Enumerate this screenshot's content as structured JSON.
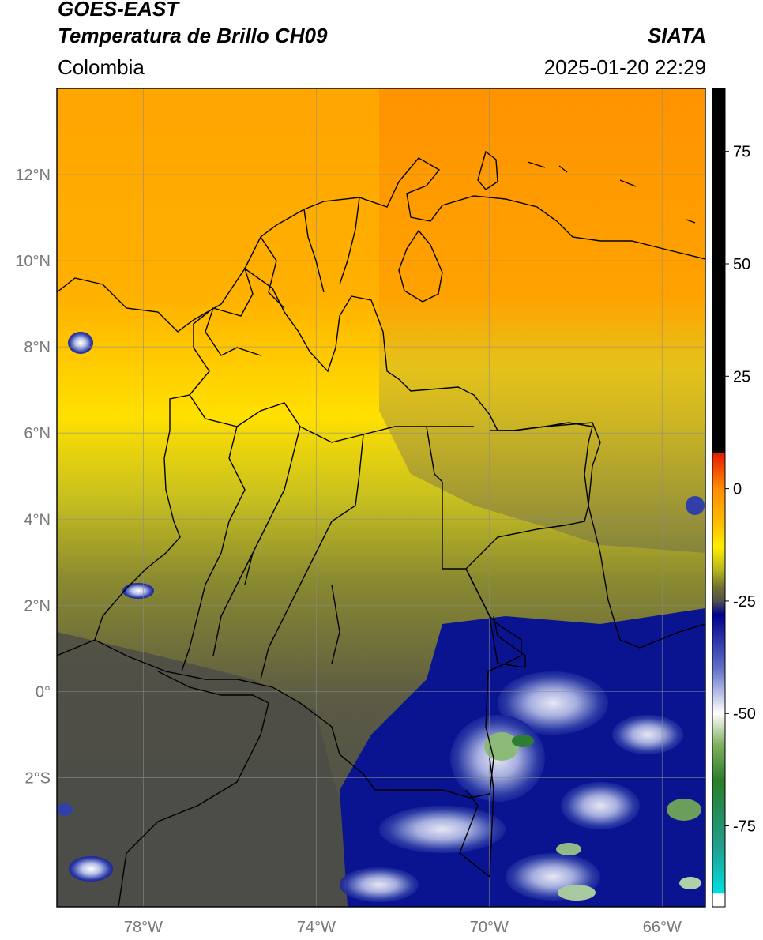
{
  "header": {
    "satellite": "GOES-EAST",
    "product": "Temperatura de Brillo CH09",
    "source": "SIATA",
    "region": "Colombia",
    "datetime": "2025-01-20 22:29"
  },
  "map": {
    "lon_range": [
      -80,
      -65
    ],
    "lat_range": [
      -5,
      14
    ],
    "lat_ticks": [
      {
        "value": 12,
        "label": "12°N"
      },
      {
        "value": 10,
        "label": "10°N"
      },
      {
        "value": 8,
        "label": "8°N"
      },
      {
        "value": 6,
        "label": "6°N"
      },
      {
        "value": 4,
        "label": "4°N"
      },
      {
        "value": 2,
        "label": "2°N"
      },
      {
        "value": 0,
        "label": "0°"
      },
      {
        "value": -2,
        "label": "2°S"
      }
    ],
    "lon_ticks": [
      {
        "value": -78,
        "label": "78°W"
      },
      {
        "value": -74,
        "label": "74°W"
      },
      {
        "value": -70,
        "label": "70°W"
      },
      {
        "value": -66,
        "label": "66°W"
      }
    ],
    "grid": true
  },
  "colorbar": {
    "range": [
      -93,
      89
    ],
    "ticks": [
      {
        "value": 75,
        "label": "75"
      },
      {
        "value": 50,
        "label": "50"
      },
      {
        "value": 25,
        "label": "25"
      },
      {
        "value": 0,
        "label": "0"
      },
      {
        "value": -25,
        "label": "-25"
      },
      {
        "value": -50,
        "label": "-50"
      },
      {
        "value": -75,
        "label": "-75"
      }
    ],
    "stops": [
      {
        "value": 89,
        "color": "#000000"
      },
      {
        "value": 8,
        "color": "#000000"
      },
      {
        "value": 7.9,
        "color": "#e61a00"
      },
      {
        "value": 0,
        "color": "#ff8c00"
      },
      {
        "value": -8,
        "color": "#ffc000"
      },
      {
        "value": -13,
        "color": "#ffee00"
      },
      {
        "value": -18,
        "color": "#b8b820"
      },
      {
        "value": -22,
        "color": "#707030"
      },
      {
        "value": -25,
        "color": "#505050"
      },
      {
        "value": -28,
        "color": "#00008c"
      },
      {
        "value": -40,
        "color": "#6070c8"
      },
      {
        "value": -50,
        "color": "#ffffff"
      },
      {
        "value": -57,
        "color": "#80b060"
      },
      {
        "value": -65,
        "color": "#2a7d2a"
      },
      {
        "value": -80,
        "color": "#20a090"
      },
      {
        "value": -90,
        "color": "#00e0e0"
      },
      {
        "value": -90.1,
        "color": "#ffffff"
      },
      {
        "value": -93,
        "color": "#ffffff"
      }
    ]
  }
}
